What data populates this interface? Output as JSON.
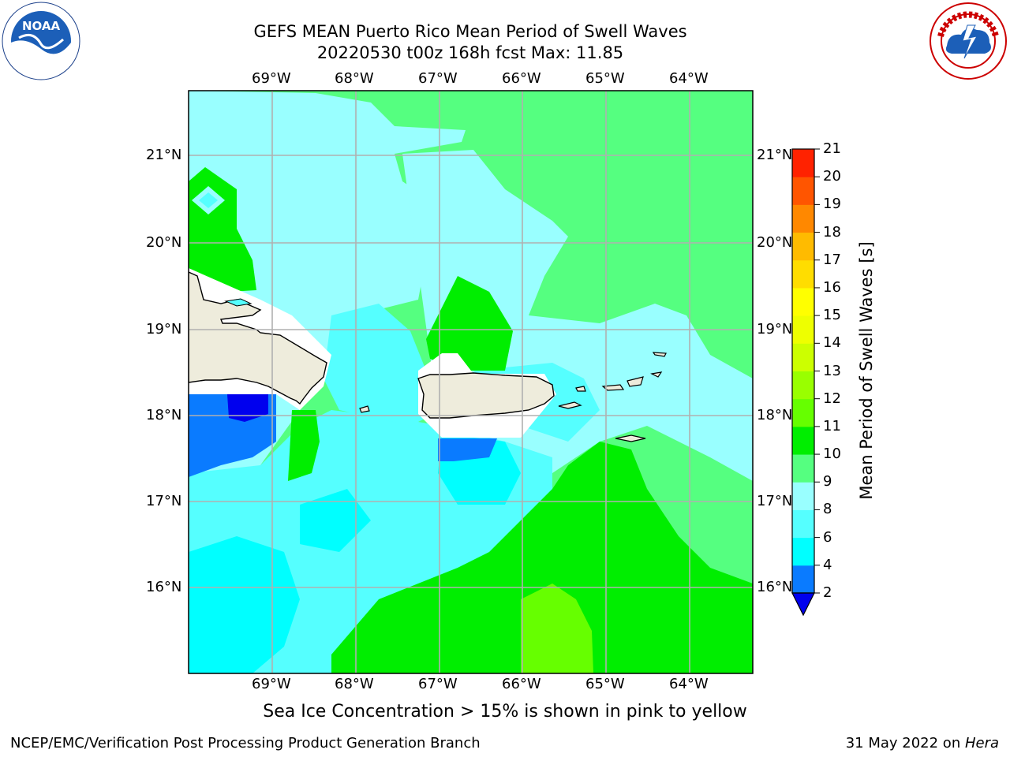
{
  "header": {
    "title_line1": "GEFS MEAN Puerto Rico Mean Period of Swell Waves",
    "title_line2": "20220530 t00z 168h fcst   Max: 11.85"
  },
  "logos": {
    "left": "NOAA",
    "left_ring": "NATIONAL OCEANIC AND ATMOSPHERIC ADMINISTRATION · U.S. DEPARTMENT OF COMMERCE",
    "right_ring": "NATIONAL WEATHER SERVICE"
  },
  "map": {
    "lon_ticks": [
      "69°W",
      "68°W",
      "67°W",
      "66°W",
      "65°W",
      "64°W"
    ],
    "lat_ticks": [
      "21°N",
      "20°N",
      "19°N",
      "18°N",
      "17°N",
      "16°N"
    ],
    "colors": {
      "land": "#eeecdc",
      "grid": "#b0b0b0",
      "c2_4": "#0a7bff",
      "c4_6": "#00ffff",
      "c6_8": "#55ffff",
      "c8_9": "#99ffff",
      "c9_10": "#55ff80",
      "c10_11": "#00ee00",
      "c11_12": "#66ff00",
      "below2": "#0000ee",
      "mask": "#ffffff"
    }
  },
  "colorbar": {
    "label": "Mean Period of Swell Waves [s]",
    "ticks": [
      "2",
      "4",
      "6",
      "8",
      "9",
      "10",
      "11",
      "12",
      "13",
      "14",
      "15",
      "16",
      "17",
      "18",
      "19",
      "20",
      "21"
    ],
    "bands": [
      "#0a7bff",
      "#00ffff",
      "#55ffff",
      "#99ffff",
      "#55ff80",
      "#00ee00",
      "#66ff00",
      "#99ff00",
      "#ccff00",
      "#eeff00",
      "#ffff00",
      "#ffdd00",
      "#ffbb00",
      "#ff8800",
      "#ff5500",
      "#ff2200"
    ],
    "under_color": "#0000ee"
  },
  "notes": {
    "sea_ice": "Sea Ice Concentration > 15% is shown in pink to yellow"
  },
  "footer": {
    "left": "NCEP/EMC/Verification Post Processing Product Generation Branch",
    "right_date": "31 May 2022 on ",
    "right_host": "Hera"
  }
}
